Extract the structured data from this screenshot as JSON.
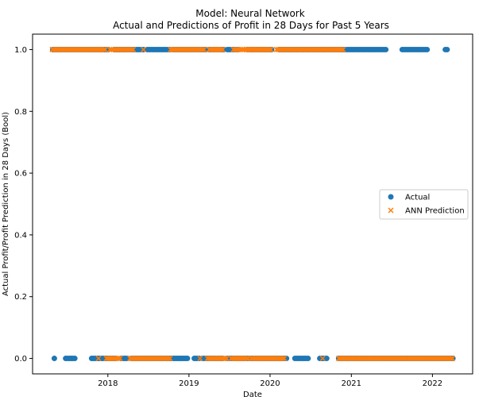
{
  "chart_data": {
    "type": "scatter",
    "title": "Model: Neural Network",
    "subtitle": "Actual and Predictions of Profit in 28 Days for Past 5 Years",
    "xlabel": "Date",
    "ylabel": "Actual Profit/Profit Prediction in 28 Days (Bool)",
    "xlim": [
      "2017-01-27",
      "2022-07-01"
    ],
    "ylim": [
      -0.05,
      1.05
    ],
    "x_ticks": [
      "2018-01-01",
      "2019-01-01",
      "2020-01-01",
      "2021-01-01",
      "2022-01-01"
    ],
    "x_tick_labels": [
      "2018",
      "2019",
      "2020",
      "2021",
      "2022"
    ],
    "y_ticks": [
      0.0,
      0.2,
      0.4,
      0.6,
      0.8,
      1.0
    ],
    "y_tick_labels": [
      "0.0",
      "0.2",
      "0.4",
      "0.6",
      "0.8",
      "1.0"
    ],
    "grid": false,
    "legend": {
      "placement": "center-right"
    },
    "series": [
      {
        "name": "Actual",
        "marker": "circle",
        "color": "#1f77b4",
        "points": [
          {
            "x": "2017-04-28",
            "y": 1,
            "to": "2018-01-02"
          },
          {
            "x": "2018-01-30",
            "y": 1,
            "to": "2018-06-10"
          },
          {
            "x": "2018-06-28",
            "y": 1,
            "to": "2018-10-08"
          },
          {
            "x": "2018-10-20",
            "y": 1,
            "to": "2019-03-18"
          },
          {
            "x": "2019-04-02",
            "y": 1,
            "to": "2019-06-08"
          },
          {
            "x": "2019-06-23",
            "y": 1,
            "to": "2019-08-12"
          },
          {
            "x": "2019-09-22",
            "y": 1,
            "to": "2020-01-08"
          },
          {
            "x": "2020-02-10",
            "y": 1,
            "to": "2021-06-05"
          },
          {
            "x": "2021-08-18",
            "y": 1,
            "to": "2021-12-08"
          },
          {
            "x": "2022-02-28",
            "y": 1,
            "to": "2022-03-08"
          },
          {
            "x": "2017-05-05",
            "y": 0
          },
          {
            "x": "2017-06-25",
            "y": 0,
            "to": "2017-08-05"
          },
          {
            "x": "2017-10-20",
            "y": 0,
            "to": "2018-02-05"
          },
          {
            "x": "2018-03-01",
            "y": 0,
            "to": "2018-03-30"
          },
          {
            "x": "2018-04-18",
            "y": 0,
            "to": "2018-10-20"
          },
          {
            "x": "2018-10-25",
            "y": 0,
            "to": "2018-12-25"
          },
          {
            "x": "2019-01-25",
            "y": 0,
            "to": "2019-02-15"
          },
          {
            "x": "2019-03-02",
            "y": 0,
            "to": "2019-06-02"
          },
          {
            "x": "2019-06-22",
            "y": 0,
            "to": "2019-09-30"
          },
          {
            "x": "2019-10-08",
            "y": 0,
            "to": "2020-03-15"
          },
          {
            "x": "2020-04-22",
            "y": 0,
            "to": "2020-06-20"
          },
          {
            "x": "2020-08-12",
            "y": 0,
            "to": "2020-09-12"
          },
          {
            "x": "2020-11-05",
            "y": 0,
            "to": "2022-04-03"
          }
        ]
      },
      {
        "name": "ANN Prediction",
        "marker": "x",
        "color": "#ff7f0e",
        "points": [
          {
            "x": "2017-04-26",
            "y": 1,
            "to": "2017-12-20"
          },
          {
            "x": "2018-01-10",
            "y": 1,
            "to": "2018-04-25"
          },
          {
            "x": "2018-06-10",
            "y": 1
          },
          {
            "x": "2018-10-10",
            "y": 1,
            "to": "2019-03-10"
          },
          {
            "x": "2019-04-02",
            "y": 1,
            "to": "2019-06-02"
          },
          {
            "x": "2019-07-20",
            "y": 1,
            "to": "2019-09-15"
          },
          {
            "x": "2019-09-20",
            "y": 1,
            "to": "2020-01-05"
          },
          {
            "x": "2020-01-30",
            "y": 1,
            "to": "2020-11-25"
          },
          {
            "x": "2017-11-20",
            "y": 0
          },
          {
            "x": "2017-12-25",
            "y": 0,
            "to": "2018-02-25"
          },
          {
            "x": "2018-04-10",
            "y": 0,
            "to": "2018-10-08"
          },
          {
            "x": "2019-02-20",
            "y": 0
          },
          {
            "x": "2019-03-25",
            "y": 0,
            "to": "2019-06-20"
          },
          {
            "x": "2019-07-10",
            "y": 0,
            "to": "2019-09-25"
          },
          {
            "x": "2019-10-08",
            "y": 0,
            "to": "2020-03-05"
          },
          {
            "x": "2020-08-25",
            "y": 0
          },
          {
            "x": "2020-11-05",
            "y": 0,
            "to": "2022-04-01"
          }
        ]
      }
    ]
  }
}
